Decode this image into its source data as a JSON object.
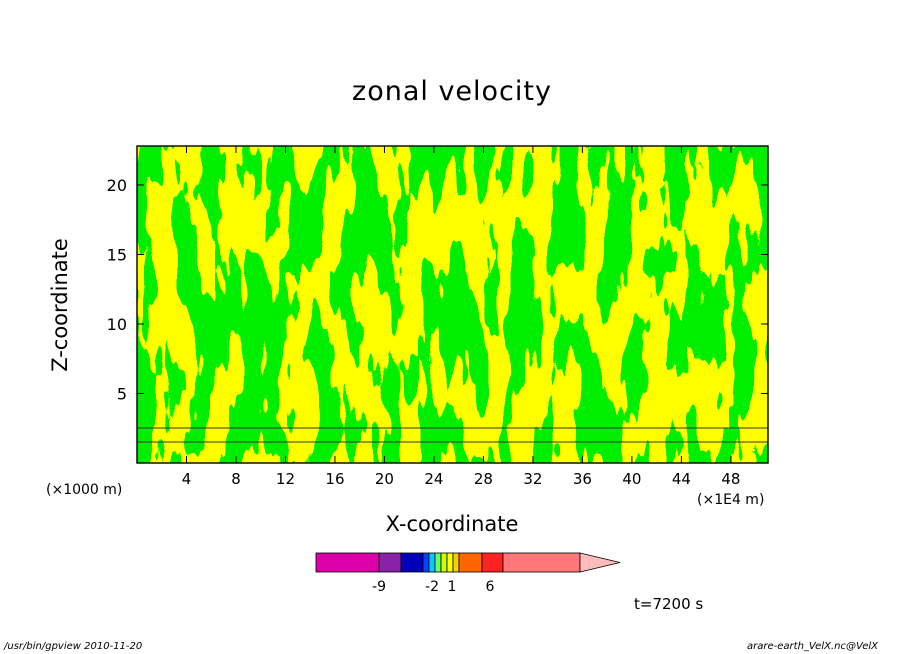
{
  "chart_data": {
    "type": "heatmap",
    "title": "zonal velocity",
    "xlabel": "X-coordinate",
    "ylabel": "Z-coordinate",
    "x_unit_left": "(×1000 m)",
    "x_unit_right": "(×1E4 m)",
    "x_ticks": [
      4,
      8,
      12,
      16,
      20,
      24,
      28,
      32,
      36,
      40,
      44,
      48
    ],
    "y_ticks": [
      5,
      10,
      15,
      20
    ],
    "xlim": [
      0,
      51
    ],
    "ylim": [
      0,
      22.8
    ],
    "dominant_colors": [
      "#00ee00",
      "#ffff00"
    ],
    "colorbar": {
      "colors": [
        "#dd00aa",
        "#8822aa",
        "#0000bb",
        "#0044ff",
        "#00ccff",
        "#66ff66",
        "#ccff00",
        "#ffff00",
        "#ffcc00",
        "#ff6600",
        "#ff2222",
        "#ff7777",
        "#ffbbbb"
      ],
      "tick_labels": [
        "-9",
        "-2",
        "1",
        "6"
      ]
    },
    "annotation": "t=7200 s"
  },
  "footer": {
    "left": "/usr/bin/gpview   2010-11-20",
    "right": "arare-earth_VelX.nc@VelX"
  }
}
